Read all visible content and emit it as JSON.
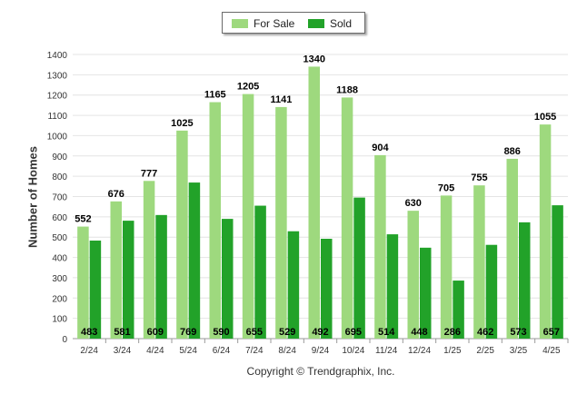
{
  "chart_data": {
    "type": "bar",
    "categories": [
      "2/24",
      "3/24",
      "4/24",
      "5/24",
      "6/24",
      "7/24",
      "8/24",
      "9/24",
      "10/24",
      "11/24",
      "12/24",
      "1/25",
      "2/25",
      "3/25",
      "4/25"
    ],
    "series": [
      {
        "name": "For Sale",
        "color": "#9ed97e",
        "values": [
          552,
          676,
          777,
          1025,
          1165,
          1205,
          1141,
          1340,
          1188,
          904,
          630,
          705,
          755,
          886,
          1055
        ]
      },
      {
        "name": "Sold",
        "color": "#22a229",
        "values": [
          483,
          581,
          609,
          769,
          590,
          655,
          529,
          492,
          695,
          514,
          448,
          286,
          462,
          573,
          657
        ]
      }
    ],
    "ylabel": "Number of Homes",
    "ylim": [
      0,
      1400
    ],
    "yticks": [
      0,
      100,
      200,
      300,
      400,
      500,
      600,
      700,
      800,
      900,
      1000,
      1100,
      1200,
      1300,
      1400
    ],
    "grid": true,
    "legend_position": "top-center"
  },
  "footer": {
    "copyright": "Copyright © Trendgraphix, Inc."
  }
}
